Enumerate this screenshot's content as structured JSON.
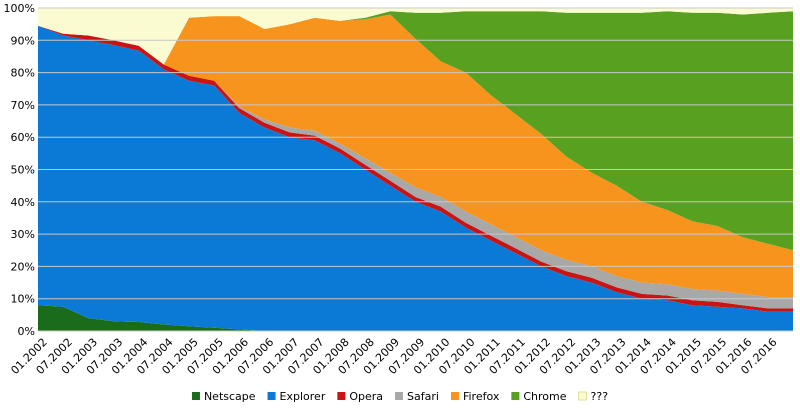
{
  "chart_data": {
    "type": "area",
    "stacked": true,
    "title": "",
    "xlabel": "",
    "ylabel": "",
    "ylim": [
      0,
      100
    ],
    "y_ticks": [
      "0%",
      "10%",
      "20%",
      "30%",
      "40%",
      "50%",
      "60%",
      "70%",
      "80%",
      "90%",
      "100%"
    ],
    "x_tick_labels": [
      "01.2002",
      "07.2002",
      "01.2003",
      "07.2003",
      "01.2004",
      "07.2004",
      "01.2005",
      "07.2005",
      "01.2006",
      "07.2006",
      "01.2007",
      "07.2007",
      "01.2008",
      "07.2008",
      "01.2009",
      "07.2009",
      "01.2010",
      "07.2010",
      "01.2011",
      "07.2011",
      "01.2012",
      "07.2012",
      "01.2013",
      "07.2013",
      "01.2014",
      "07.2014",
      "01.2015",
      "07.2015",
      "01.2016",
      "07.2016"
    ],
    "grid": true,
    "legend_position": "bottom",
    "x": [
      "01.2002",
      "07.2002",
      "01.2003",
      "07.2003",
      "01.2004",
      "07.2004",
      "01.2005",
      "07.2005",
      "01.2006",
      "07.2006",
      "01.2007",
      "07.2007",
      "01.2008",
      "07.2008",
      "01.2009",
      "07.2009",
      "01.2010",
      "07.2010",
      "01.2011",
      "07.2011",
      "01.2012",
      "07.2012",
      "01.2013",
      "07.2013",
      "01.2014",
      "07.2014",
      "01.2015",
      "07.2015",
      "01.2016",
      "07.2016",
      "12.2016"
    ],
    "series": [
      {
        "name": "Netscape",
        "color": "#1a6b1a",
        "values": [
          8,
          7.5,
          4,
          3,
          2.8,
          2,
          1.5,
          1,
          0.5,
          0,
          0,
          0,
          0,
          0,
          0,
          0,
          0,
          0,
          0,
          0,
          0,
          0,
          0,
          0,
          0,
          0,
          0,
          0,
          0,
          0,
          0
        ]
      },
      {
        "name": "Explorer",
        "color": "#0a7ad6",
        "values": [
          86.5,
          84,
          86,
          85.5,
          84,
          79,
          76,
          75,
          67,
          63,
          60,
          59,
          55,
          50,
          45,
          40,
          37,
          32,
          28,
          24,
          20,
          17,
          15,
          12,
          10,
          9.5,
          8,
          7.5,
          7,
          6,
          6
        ]
      },
      {
        "name": "Opera",
        "color": "#c81414",
        "values": [
          0,
          0.5,
          1.5,
          1.5,
          1.5,
          1.5,
          1.5,
          1.5,
          1.5,
          1.5,
          1.5,
          1.5,
          1.5,
          1.5,
          1.5,
          1.5,
          1.5,
          1.5,
          1.5,
          1.5,
          1.5,
          1.5,
          1.5,
          1.5,
          1.5,
          1.5,
          1.5,
          1.5,
          1,
          1,
          1
        ]
      },
      {
        "name": "Safari",
        "color": "#a8a8a8",
        "values": [
          0,
          0,
          0,
          0,
          0,
          0,
          0,
          0,
          0.5,
          1,
          1.5,
          1.5,
          1.5,
          2,
          2.5,
          3,
          3,
          3.5,
          3.5,
          3.5,
          3.5,
          3.5,
          3.5,
          3.5,
          3.5,
          3.5,
          3.5,
          3.5,
          3.5,
          3.5,
          3.5
        ]
      },
      {
        "name": "Firefox",
        "color": "#f7941d",
        "values": [
          0,
          0,
          0,
          0,
          0,
          0,
          18,
          20,
          28,
          28,
          32,
          35,
          38,
          43,
          49,
          46,
          42,
          43,
          40,
          38,
          36,
          32,
          29,
          28,
          25,
          23,
          21,
          20,
          17.5,
          16.5,
          14.5
        ]
      },
      {
        "name": "Chrome",
        "color": "#58a020",
        "values": [
          0,
          0,
          0,
          0,
          0,
          0,
          0,
          0,
          0,
          0,
          0,
          0,
          0,
          0.5,
          1,
          8,
          15,
          19,
          26,
          32,
          38,
          44.5,
          49.5,
          53.5,
          58.5,
          61.5,
          64.5,
          66,
          69,
          71.5,
          74
        ]
      },
      {
        "name": "???",
        "color": "#fbfbd2",
        "values": [
          5.5,
          8,
          8.5,
          10,
          11.7,
          17.5,
          3,
          2.5,
          2.5,
          6.5,
          5,
          3,
          4,
          3,
          1,
          1.5,
          1.5,
          1,
          1,
          1,
          1,
          1.5,
          1.5,
          1.5,
          1.5,
          1,
          1.5,
          1.5,
          2,
          1.5,
          1
        ]
      }
    ]
  }
}
